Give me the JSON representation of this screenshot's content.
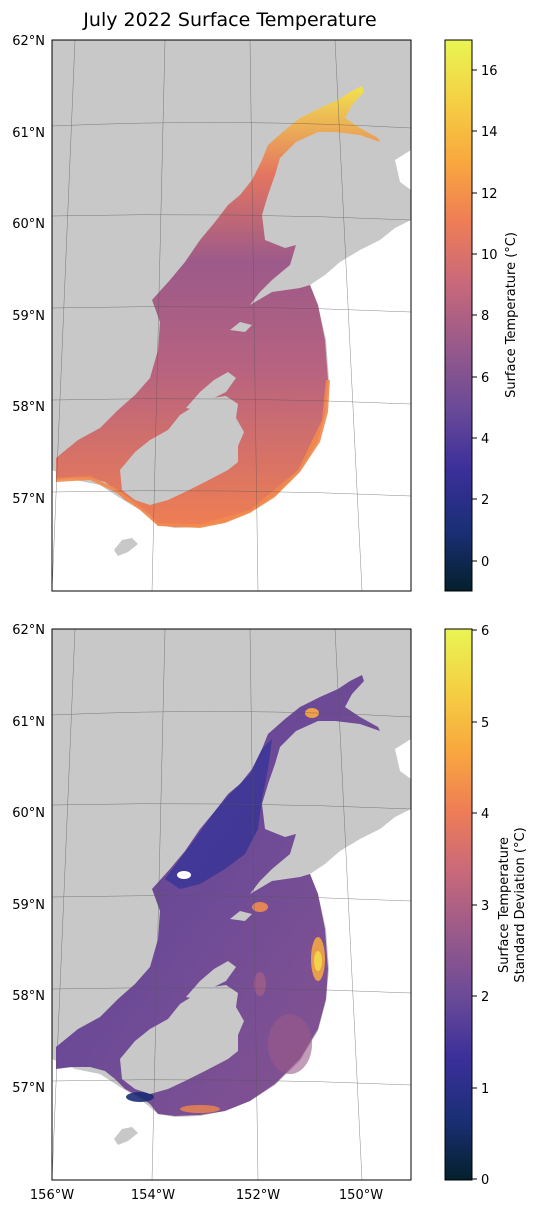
{
  "title": "July 2022 Surface Temperature",
  "panels": [
    {
      "id": "temperature",
      "lat_labels": [
        "62°N",
        "61°N",
        "60°N",
        "59°N",
        "58°N",
        "57°N"
      ],
      "lon_labels": [],
      "colorbar": {
        "label_lines": [
          "Surface Temperature (°C)"
        ],
        "ticks": [
          "16",
          "14",
          "12",
          "10",
          "8",
          "6",
          "4",
          "2",
          "0"
        ],
        "range": [
          -1,
          17
        ],
        "colormap": "thermal"
      }
    },
    {
      "id": "stddev",
      "lat_labels": [
        "62°N",
        "61°N",
        "60°N",
        "59°N",
        "58°N",
        "57°N"
      ],
      "lon_labels": [
        "156°W",
        "154°W",
        "152°W",
        "150°W"
      ],
      "colorbar": {
        "label_lines": [
          "Surface Temperature",
          "Standard Deviation (°C)"
        ],
        "ticks": [
          "6",
          "5",
          "4",
          "3",
          "2",
          "1",
          "0"
        ],
        "range": [
          0,
          6
        ],
        "colormap": "thermal"
      }
    }
  ],
  "colors": {
    "land": "#c8c8c8",
    "grid": "#555555",
    "cmap_stops": [
      "#04202c",
      "#1a2f76",
      "#3b2f9a",
      "#6a4a98",
      "#9a5a8a",
      "#c9697a",
      "#ee7d56",
      "#f9a83e",
      "#f4d043",
      "#e9f553"
    ]
  }
}
